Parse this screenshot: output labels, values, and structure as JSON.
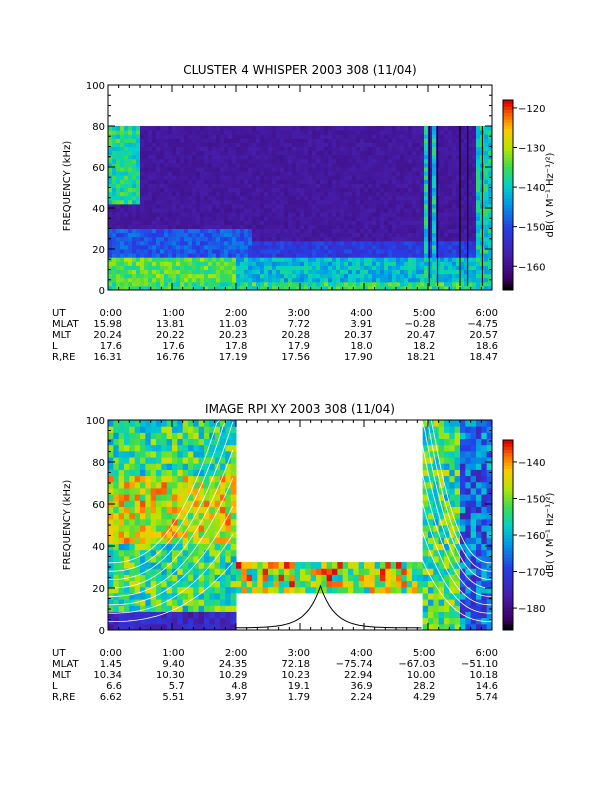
{
  "chart_data": [
    {
      "type": "heatmap",
      "title": "CLUSTER 4 WHISPER 2003 308 (11/04)",
      "ylabel": "FREQUENCY (kHz)",
      "ylim": [
        0,
        100
      ],
      "yticks": [
        "0",
        "20",
        "40",
        "60",
        "80",
        "100"
      ],
      "xticks": [
        "0:00",
        "1:00",
        "2:00",
        "3:00",
        "4:00",
        "5:00",
        "6:00"
      ],
      "data_ylim": [
        0,
        80
      ],
      "colorbar": {
        "label": "dB( V M⁻¹ Hz⁻¹/²)",
        "range": [
          -166,
          -118
        ],
        "ticks": [
          "-120",
          "-130",
          "-140",
          "-150",
          "-160"
        ]
      },
      "ephemeris": [
        {
          "name": "UT",
          "values": [
            "0:00",
            "1:00",
            "2:00",
            "3:00",
            "4:00",
            "5:00",
            "6:00"
          ]
        },
        {
          "name": "MLAT",
          "values": [
            "15.98",
            "13.81",
            "11.03",
            "7.72",
            "3.91",
            "−0.28",
            "−4.75"
          ]
        },
        {
          "name": "MLT",
          "values": [
            "20.24",
            "20.22",
            "20.23",
            "20.28",
            "20.37",
            "20.47",
            "20.57"
          ]
        },
        {
          "name": "L",
          "values": [
            "17.6",
            "17.6",
            "17.8",
            "17.9",
            "18.0",
            "18.2",
            "18.6"
          ]
        },
        {
          "name": "R,RE",
          "values": [
            "16.31",
            "16.76",
            "17.19",
            "17.56",
            "17.90",
            "18.21",
            "18.47"
          ]
        }
      ]
    },
    {
      "type": "heatmap",
      "title": "IMAGE RPI XY 2003 308 (11/04)",
      "ylabel": "FREQUENCY (kHz)",
      "ylim": [
        0,
        100
      ],
      "yticks": [
        "0",
        "20",
        "40",
        "60",
        "80",
        "100"
      ],
      "xticks": [
        "0:00",
        "1:00",
        "2:00",
        "3:00",
        "4:00",
        "5:00",
        "6:00"
      ],
      "gap": {
        "from_hour": 2.0,
        "to_hour": 4.9,
        "band_kHz": [
          18,
          33
        ]
      },
      "colorbar": {
        "label": "dB( V M⁻¹ Hz⁻¹/²)",
        "range": [
          -186,
          -134
        ],
        "ticks": [
          "-140",
          "-150",
          "-160",
          "-170",
          "-180"
        ]
      },
      "ephemeris": [
        {
          "name": "UT",
          "values": [
            "0:00",
            "1:00",
            "2:00",
            "3:00",
            "4:00",
            "5:00",
            "6:00"
          ]
        },
        {
          "name": "MLAT",
          "values": [
            "1.45",
            "9.40",
            "24.35",
            "72.18",
            "−75.74",
            "−67.03",
            "−51.10"
          ]
        },
        {
          "name": "MLT",
          "values": [
            "10.34",
            "10.30",
            "10.29",
            "10.23",
            "22.94",
            "10.00",
            "10.18"
          ]
        },
        {
          "name": "L",
          "values": [
            "6.6",
            "5.7",
            "4.8",
            "19.1",
            "36.9",
            "28.2",
            "14.6"
          ]
        },
        {
          "name": "R,RE",
          "values": [
            "6.62",
            "5.51",
            "3.97",
            "1.79",
            "2.24",
            "4.29",
            "5.74"
          ]
        }
      ]
    }
  ]
}
